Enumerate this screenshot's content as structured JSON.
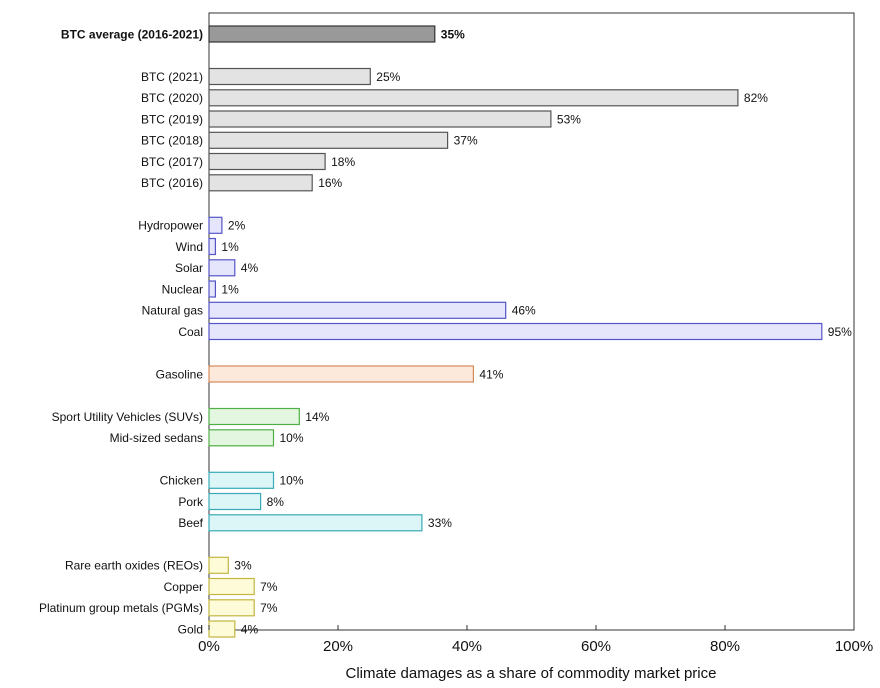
{
  "chart_data": {
    "type": "bar",
    "orientation": "horizontal",
    "title": "",
    "xlabel": "Climate damages as a share of commodity market price",
    "ylabel": "",
    "xlim": [
      0,
      100
    ],
    "x_ticks": [
      "0%",
      "20%",
      "40%",
      "60%",
      "80%",
      "100%"
    ],
    "grid": false,
    "legend": "none",
    "groups": [
      {
        "color": "#999999",
        "stroke": "#333333",
        "items": [
          {
            "label": "BTC average (2016-2021)",
            "value": 35,
            "value_label": "35%",
            "bold": true
          }
        ]
      },
      {
        "color": "#e3e3e3",
        "stroke": "#555555",
        "items": [
          {
            "label": "BTC (2021)",
            "value": 25,
            "value_label": "25%"
          },
          {
            "label": "BTC (2020)",
            "value": 82,
            "value_label": "82%"
          },
          {
            "label": "BTC (2019)",
            "value": 53,
            "value_label": "53%"
          },
          {
            "label": "BTC (2018)",
            "value": 37,
            "value_label": "37%"
          },
          {
            "label": "BTC (2017)",
            "value": 18,
            "value_label": "18%"
          },
          {
            "label": "BTC (2016)",
            "value": 16,
            "value_label": "16%"
          }
        ]
      },
      {
        "color": "#e5e5fb",
        "stroke": "#5555c8",
        "items": [
          {
            "label": "Hydropower",
            "value": 2,
            "value_label": "2%"
          },
          {
            "label": "Wind",
            "value": 1,
            "value_label": "1%"
          },
          {
            "label": "Solar",
            "value": 4,
            "value_label": "4%"
          },
          {
            "label": "Nuclear",
            "value": 1,
            "value_label": "1%"
          },
          {
            "label": "Natural gas",
            "value": 46,
            "value_label": "46%"
          },
          {
            "label": "Coal",
            "value": 95,
            "value_label": "95%"
          }
        ]
      },
      {
        "color": "#fde9dc",
        "stroke": "#d58a5a",
        "items": [
          {
            "label": "Gasoline",
            "value": 41,
            "value_label": "41%"
          }
        ]
      },
      {
        "color": "#e3f6df",
        "stroke": "#4fae45",
        "items": [
          {
            "label": "Sport Utility Vehicles (SUVs)",
            "value": 14,
            "value_label": "14%"
          },
          {
            "label": "Mid-sized sedans",
            "value": 10,
            "value_label": "10%"
          }
        ]
      },
      {
        "color": "#dcf6f8",
        "stroke": "#38aab5",
        "items": [
          {
            "label": "Chicken",
            "value": 10,
            "value_label": "10%"
          },
          {
            "label": "Pork",
            "value": 8,
            "value_label": "8%"
          },
          {
            "label": "Beef",
            "value": 33,
            "value_label": "33%"
          }
        ]
      },
      {
        "color": "#fdfbd8",
        "stroke": "#c2b640",
        "items": [
          {
            "label": "Rare earth oxides (REOs)",
            "value": 3,
            "value_label": "3%"
          },
          {
            "label": "Copper",
            "value": 7,
            "value_label": "7%"
          },
          {
            "label": "Platinum group metals (PGMs)",
            "value": 7,
            "value_label": "7%"
          },
          {
            "label": "Gold",
            "value": 4,
            "value_label": "4%"
          }
        ]
      }
    ]
  }
}
